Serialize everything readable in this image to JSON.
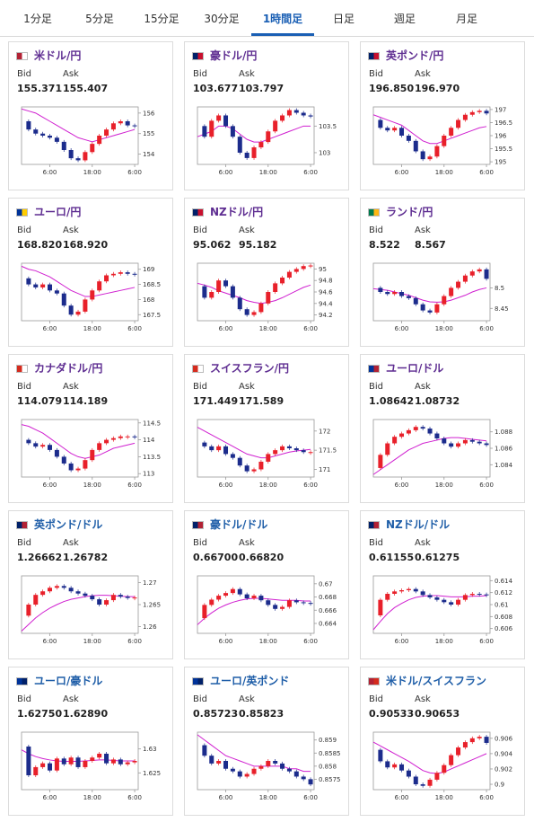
{
  "tabs": [
    "1分足",
    "5分足",
    "15分足",
    "30分足",
    "1時間足",
    "日足",
    "週足",
    "月足"
  ],
  "active_tab": 4,
  "labels": {
    "bid": "Bid",
    "ask": "Ask"
  },
  "chart_x": [
    0,
    2,
    4,
    6,
    8,
    10,
    12,
    14,
    16,
    18,
    20,
    22,
    24,
    26,
    28,
    30,
    32
  ],
  "xlim": [
    0,
    33
  ],
  "xticks": [
    {
      "value": 8,
      "label": "6:00"
    },
    {
      "value": 20,
      "label": "18:00"
    },
    {
      "value": 32,
      "label": "6:00"
    }
  ],
  "cards": [
    {
      "pair": "米ドル/円",
      "bid": "155.371",
      "ask": "155.407",
      "ylim": [
        153.5,
        156.3
      ],
      "yticks": [
        156,
        155,
        154
      ],
      "close": [
        155.6,
        155.2,
        155.0,
        154.9,
        154.8,
        154.6,
        154.2,
        153.8,
        153.7,
        154.1,
        154.5,
        154.9,
        155.2,
        155.5,
        155.6,
        155.4,
        155.37
      ],
      "ma": [
        156.2,
        156.1,
        156.0,
        155.8,
        155.6,
        155.4,
        155.2,
        155.0,
        154.8,
        154.7,
        154.6,
        154.7,
        154.8,
        154.9,
        155.0,
        155.1,
        155.2
      ]
    },
    {
      "pair": "豪ドル/円",
      "bid": "103.677",
      "ask": "103.797",
      "ylim": [
        102.78,
        103.86
      ],
      "yticks": [
        103.5,
        103
      ],
      "close": [
        103.5,
        103.3,
        103.6,
        103.7,
        103.5,
        103.3,
        103.0,
        102.9,
        103.1,
        103.2,
        103.4,
        103.6,
        103.7,
        103.8,
        103.75,
        103.7,
        103.68
      ],
      "ma": [
        103.3,
        103.35,
        103.4,
        103.5,
        103.5,
        103.45,
        103.35,
        103.25,
        103.2,
        103.2,
        103.25,
        103.3,
        103.35,
        103.4,
        103.45,
        103.5,
        103.5
      ]
    },
    {
      "pair": "英ポンド/円",
      "bid": "196.850",
      "ask": "196.970",
      "ylim": [
        194.9,
        197.1
      ],
      "yticks": [
        197,
        196.5,
        196,
        195.5,
        195
      ],
      "close": [
        196.6,
        196.3,
        196.2,
        196.3,
        196.0,
        195.8,
        195.4,
        195.1,
        195.2,
        195.6,
        196.0,
        196.3,
        196.6,
        196.8,
        196.9,
        196.95,
        196.85
      ],
      "ma": [
        196.8,
        196.7,
        196.6,
        196.5,
        196.4,
        196.2,
        196.0,
        195.8,
        195.7,
        195.7,
        195.8,
        195.9,
        196.0,
        196.1,
        196.2,
        196.3,
        196.35
      ]
    },
    {
      "pair": "ユーロ/円",
      "bid": "168.820",
      "ask": "168.920",
      "ylim": [
        167.3,
        169.2
      ],
      "yticks": [
        169,
        168.5,
        168,
        167.5
      ],
      "close": [
        168.7,
        168.5,
        168.4,
        168.5,
        168.3,
        168.2,
        167.8,
        167.5,
        167.6,
        168.0,
        168.3,
        168.6,
        168.8,
        168.85,
        168.9,
        168.85,
        168.82
      ],
      "ma": [
        169.1,
        169.0,
        168.95,
        168.85,
        168.75,
        168.6,
        168.45,
        168.3,
        168.2,
        168.1,
        168.1,
        168.15,
        168.2,
        168.25,
        168.3,
        168.35,
        168.4
      ]
    },
    {
      "pair": "NZドル/円",
      "bid": "95.062",
      "ask": "95.182",
      "ylim": [
        94.1,
        95.1
      ],
      "yticks": [
        95,
        94.8,
        94.6,
        94.4,
        94.2
      ],
      "close": [
        94.7,
        94.5,
        94.6,
        94.8,
        94.7,
        94.5,
        94.3,
        94.2,
        94.25,
        94.4,
        94.6,
        94.75,
        94.85,
        94.95,
        95.0,
        95.05,
        95.06
      ],
      "ma": [
        94.75,
        94.72,
        94.68,
        94.62,
        94.58,
        94.54,
        94.5,
        94.45,
        94.42,
        94.4,
        94.42,
        94.45,
        94.5,
        94.56,
        94.62,
        94.68,
        94.72
      ]
    },
    {
      "pair": "ランド/円",
      "bid": "8.522",
      "ask": "8.567",
      "ylim": [
        8.42,
        8.56
      ],
      "yticks": [
        8.5,
        8.45
      ],
      "close": [
        8.5,
        8.49,
        8.485,
        8.49,
        8.48,
        8.475,
        8.46,
        8.445,
        8.44,
        8.46,
        8.48,
        8.5,
        8.515,
        8.53,
        8.54,
        8.545,
        8.522
      ],
      "ma": [
        8.498,
        8.496,
        8.494,
        8.49,
        8.486,
        8.482,
        8.476,
        8.47,
        8.466,
        8.465,
        8.466,
        8.47,
        8.476,
        8.482,
        8.49,
        8.496,
        8.5
      ]
    },
    {
      "pair": "カナダドル/円",
      "bid": "114.079",
      "ask": "114.189",
      "ylim": [
        112.9,
        114.6
      ],
      "yticks": [
        114.5,
        114,
        113.5,
        113
      ],
      "close": [
        114.0,
        113.9,
        113.8,
        113.85,
        113.7,
        113.5,
        113.3,
        113.1,
        113.15,
        113.4,
        113.7,
        113.9,
        114.0,
        114.05,
        114.1,
        114.1,
        114.08
      ],
      "ma": [
        114.45,
        114.4,
        114.3,
        114.2,
        114.05,
        113.9,
        113.75,
        113.6,
        113.5,
        113.45,
        113.5,
        113.55,
        113.65,
        113.75,
        113.8,
        113.85,
        113.9
      ]
    },
    {
      "pair": "スイスフラン/円",
      "bid": "171.449",
      "ask": "171.589",
      "ylim": [
        170.8,
        172.3
      ],
      "yticks": [
        172,
        171.5,
        171
      ],
      "close": [
        171.7,
        171.6,
        171.5,
        171.6,
        171.4,
        171.3,
        171.1,
        170.95,
        171.0,
        171.2,
        171.4,
        171.5,
        171.6,
        171.55,
        171.5,
        171.45,
        171.45
      ],
      "ma": [
        172.1,
        172.0,
        171.9,
        171.8,
        171.7,
        171.6,
        171.5,
        171.4,
        171.35,
        171.3,
        171.3,
        171.35,
        171.4,
        171.45,
        171.48,
        171.5,
        171.52
      ]
    },
    {
      "pair": "ユーロ/ドル",
      "bid": "1.08642",
      "ask": "1.08732",
      "ylim": [
        1.0825,
        1.0895
      ],
      "yticks": [
        1.088,
        1.086,
        1.084
      ],
      "close": [
        1.0836,
        1.0852,
        1.0866,
        1.0874,
        1.0878,
        1.0882,
        1.0886,
        1.0884,
        1.0878,
        1.0872,
        1.0866,
        1.0862,
        1.0866,
        1.087,
        1.0868,
        1.0866,
        1.0864
      ],
      "ma": [
        1.0828,
        1.0834,
        1.084,
        1.0846,
        1.0852,
        1.0858,
        1.0862,
        1.0866,
        1.0868,
        1.087,
        1.0872,
        1.0873,
        1.0873,
        1.0872,
        1.0871,
        1.087,
        1.0869
      ]
    },
    {
      "pair": "英ポンド/ドル",
      "bid": "1.26662",
      "ask": "1.26782",
      "ylim": [
        1.2585,
        1.2715
      ],
      "yticks": [
        1.27,
        1.265,
        1.26
      ],
      "close": [
        1.2625,
        1.265,
        1.2672,
        1.268,
        1.2688,
        1.2692,
        1.2688,
        1.268,
        1.2675,
        1.267,
        1.2662,
        1.265,
        1.266,
        1.2672,
        1.2668,
        1.2665,
        1.2666
      ],
      "ma": [
        1.259,
        1.2605,
        1.262,
        1.2632,
        1.2642,
        1.265,
        1.2657,
        1.2662,
        1.2665,
        1.2668,
        1.267,
        1.2671,
        1.2671,
        1.267,
        1.2669,
        1.2668,
        1.2668
      ]
    },
    {
      "pair": "豪ドル/ドル",
      "bid": "0.66700",
      "ask": "0.66820",
      "ylim": [
        0.6625,
        0.6712
      ],
      "yticks": [
        0.67,
        0.668,
        0.666,
        0.664
      ],
      "close": [
        0.6648,
        0.6668,
        0.6676,
        0.6682,
        0.6686,
        0.6692,
        0.6684,
        0.6678,
        0.6682,
        0.6675,
        0.6668,
        0.6662,
        0.6665,
        0.6675,
        0.6672,
        0.6671,
        0.667
      ],
      "ma": [
        0.6638,
        0.6648,
        0.6656,
        0.6663,
        0.6668,
        0.6672,
        0.6675,
        0.6677,
        0.6678,
        0.6678,
        0.6677,
        0.6676,
        0.6675,
        0.6675,
        0.6675,
        0.6674,
        0.6674
      ]
    },
    {
      "pair": "NZドル/ドル",
      "bid": "0.61155",
      "ask": "0.61275",
      "ylim": [
        0.6052,
        0.6148
      ],
      "yticks": [
        0.614,
        0.612,
        0.61,
        0.608,
        0.606
      ],
      "close": [
        0.6082,
        0.6108,
        0.6118,
        0.6122,
        0.6124,
        0.6126,
        0.6122,
        0.6116,
        0.6112,
        0.6108,
        0.6104,
        0.61,
        0.6108,
        0.6116,
        0.6118,
        0.6117,
        0.6116
      ],
      "ma": [
        0.6058,
        0.6072,
        0.6085,
        0.6095,
        0.6102,
        0.6108,
        0.6112,
        0.6114,
        0.6115,
        0.6115,
        0.6114,
        0.6113,
        0.6113,
        0.6113,
        0.6114,
        0.6114,
        0.6115
      ]
    },
    {
      "pair": "ユーロ/豪ドル",
      "bid": "1.62750",
      "ask": "1.62890",
      "ylim": [
        1.6215,
        1.6335
      ],
      "yticks": [
        1.63,
        1.625
      ],
      "close": [
        1.6305,
        1.6245,
        1.6262,
        1.627,
        1.6255,
        1.628,
        1.6268,
        1.6282,
        1.6262,
        1.6275,
        1.6282,
        1.629,
        1.627,
        1.6278,
        1.6268,
        1.6272,
        1.6275
      ],
      "ma": [
        1.6298,
        1.629,
        1.6284,
        1.628,
        1.6277,
        1.6275,
        1.6274,
        1.6274,
        1.6274,
        1.6275,
        1.6276,
        1.6277,
        1.6277,
        1.6276,
        1.6275,
        1.6275,
        1.6275
      ]
    },
    {
      "pair": "ユーロ/英ポンド",
      "bid": "0.85723",
      "ask": "0.85823",
      "ylim": [
        0.8571,
        0.8593
      ],
      "yticks": [
        0.859,
        0.8585,
        0.858,
        0.8575
      ],
      "close": [
        0.8588,
        0.8584,
        0.8581,
        0.8582,
        0.8579,
        0.8578,
        0.8576,
        0.8577,
        0.8579,
        0.858,
        0.8582,
        0.8581,
        0.8579,
        0.8578,
        0.8576,
        0.8575,
        0.8573
      ],
      "ma": [
        0.8592,
        0.859,
        0.8588,
        0.8586,
        0.8584,
        0.8583,
        0.8582,
        0.8581,
        0.858,
        0.858,
        0.858,
        0.858,
        0.858,
        0.8579,
        0.8579,
        0.8578,
        0.8578
      ]
    },
    {
      "pair": "米ドル/スイスフラン",
      "bid": "0.90533",
      "ask": "0.90653",
      "ylim": [
        0.8993,
        0.9068
      ],
      "yticks": [
        0.906,
        0.904,
        0.902,
        0.9
      ],
      "close": [
        0.9045,
        0.903,
        0.9022,
        0.9026,
        0.9018,
        0.901,
        0.9,
        0.8998,
        0.9006,
        0.9015,
        0.9025,
        0.9038,
        0.9048,
        0.9055,
        0.906,
        0.9062,
        0.9054
      ],
      "ma": [
        0.9055,
        0.905,
        0.9045,
        0.904,
        0.9035,
        0.903,
        0.9024,
        0.9018,
        0.9015,
        0.9014,
        0.9016,
        0.902,
        0.9024,
        0.9028,
        0.9032,
        0.9036,
        0.904
      ]
    }
  ]
}
